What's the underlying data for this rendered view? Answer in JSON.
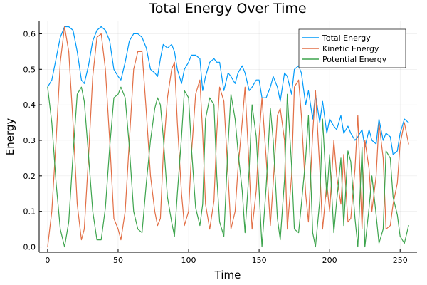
{
  "chart_data": {
    "type": "line",
    "title": "Total Energy Over Time",
    "xlabel": "Time",
    "ylabel": "Energy",
    "xlim": [
      -6,
      262
    ],
    "ylim": [
      -0.015,
      0.635
    ],
    "xticks": [
      0,
      50,
      100,
      150,
      200,
      250
    ],
    "yticks": [
      0.0,
      0.1,
      0.2,
      0.3,
      0.4,
      0.5,
      0.6
    ],
    "grid": true,
    "legend_position": "top-right",
    "series": [
      {
        "name": "Total Energy",
        "color": "#009af9",
        "x": [
          0,
          3,
          6,
          9,
          12,
          15,
          18,
          21,
          24,
          26,
          29,
          32,
          35,
          38,
          41,
          44,
          47,
          50,
          52,
          55,
          58,
          61,
          64,
          67,
          70,
          73,
          76,
          78,
          80,
          82,
          85,
          88,
          90,
          92,
          95,
          97,
          100,
          102,
          105,
          108,
          110,
          112,
          115,
          118,
          120,
          122,
          125,
          128,
          130,
          133,
          135,
          138,
          140,
          143,
          145,
          148,
          150,
          152,
          155,
          158,
          160,
          163,
          165,
          168,
          170,
          173,
          175,
          178,
          180,
          183,
          185,
          188,
          190,
          193,
          195,
          198,
          200,
          203,
          205,
          208,
          210,
          213,
          215,
          218,
          220,
          223,
          225,
          228,
          230,
          233,
          235,
          238,
          240,
          243,
          245,
          248,
          250,
          253,
          256
        ],
        "values": [
          0.45,
          0.47,
          0.53,
          0.59,
          0.62,
          0.62,
          0.61,
          0.55,
          0.47,
          0.46,
          0.51,
          0.58,
          0.61,
          0.62,
          0.61,
          0.58,
          0.5,
          0.48,
          0.47,
          0.52,
          0.58,
          0.6,
          0.6,
          0.59,
          0.56,
          0.5,
          0.49,
          0.48,
          0.53,
          0.57,
          0.56,
          0.57,
          0.55,
          0.5,
          0.46,
          0.5,
          0.52,
          0.54,
          0.54,
          0.53,
          0.44,
          0.48,
          0.52,
          0.53,
          0.52,
          0.52,
          0.44,
          0.49,
          0.48,
          0.46,
          0.49,
          0.51,
          0.49,
          0.44,
          0.45,
          0.47,
          0.47,
          0.42,
          0.42,
          0.45,
          0.48,
          0.45,
          0.41,
          0.49,
          0.48,
          0.43,
          0.5,
          0.51,
          0.49,
          0.4,
          0.44,
          0.36,
          0.43,
          0.35,
          0.41,
          0.32,
          0.36,
          0.34,
          0.33,
          0.37,
          0.32,
          0.34,
          0.32,
          0.3,
          0.31,
          0.33,
          0.28,
          0.33,
          0.3,
          0.29,
          0.36,
          0.3,
          0.32,
          0.31,
          0.26,
          0.27,
          0.32,
          0.36,
          0.35
        ]
      },
      {
        "name": "Kinetic Energy",
        "color": "#e26f46",
        "x": [
          0,
          3,
          6,
          9,
          12,
          15,
          18,
          21,
          24,
          26,
          29,
          32,
          35,
          38,
          41,
          44,
          47,
          50,
          52,
          55,
          58,
          61,
          64,
          67,
          70,
          73,
          76,
          78,
          80,
          82,
          85,
          88,
          90,
          92,
          95,
          97,
          100,
          102,
          105,
          108,
          110,
          112,
          115,
          118,
          120,
          122,
          125,
          128,
          130,
          133,
          135,
          138,
          140,
          143,
          145,
          148,
          150,
          152,
          155,
          158,
          160,
          163,
          165,
          168,
          170,
          173,
          175,
          178,
          180,
          183,
          185,
          188,
          190,
          193,
          195,
          198,
          200,
          203,
          205,
          208,
          210,
          213,
          215,
          218,
          220,
          223,
          225,
          228,
          230,
          233,
          235,
          238,
          240,
          243,
          245,
          248,
          250,
          253,
          256
        ],
        "values": [
          0.0,
          0.1,
          0.3,
          0.52,
          0.62,
          0.55,
          0.35,
          0.12,
          0.02,
          0.05,
          0.25,
          0.48,
          0.59,
          0.6,
          0.5,
          0.3,
          0.08,
          0.05,
          0.02,
          0.1,
          0.3,
          0.5,
          0.55,
          0.55,
          0.38,
          0.2,
          0.1,
          0.06,
          0.08,
          0.26,
          0.42,
          0.5,
          0.52,
          0.35,
          0.15,
          0.06,
          0.1,
          0.26,
          0.43,
          0.47,
          0.32,
          0.12,
          0.05,
          0.13,
          0.32,
          0.45,
          0.41,
          0.2,
          0.05,
          0.1,
          0.22,
          0.35,
          0.45,
          0.22,
          0.05,
          0.16,
          0.31,
          0.42,
          0.25,
          0.06,
          0.18,
          0.37,
          0.39,
          0.3,
          0.05,
          0.2,
          0.45,
          0.47,
          0.37,
          0.15,
          0.07,
          0.32,
          0.44,
          0.22,
          0.05,
          0.18,
          0.1,
          0.3,
          0.2,
          0.12,
          0.26,
          0.07,
          0.08,
          0.22,
          0.37,
          0.05,
          0.3,
          0.22,
          0.1,
          0.2,
          0.35,
          0.25,
          0.05,
          0.06,
          0.12,
          0.18,
          0.29,
          0.35,
          0.29
        ]
      },
      {
        "name": "Potential Energy",
        "color": "#3da44d",
        "x": [
          0,
          3,
          6,
          9,
          12,
          15,
          18,
          21,
          24,
          26,
          29,
          32,
          35,
          38,
          41,
          44,
          47,
          50,
          52,
          55,
          58,
          61,
          64,
          67,
          70,
          73,
          76,
          78,
          80,
          82,
          85,
          88,
          90,
          92,
          95,
          97,
          100,
          102,
          105,
          108,
          110,
          112,
          115,
          118,
          120,
          122,
          125,
          128,
          130,
          133,
          135,
          138,
          140,
          143,
          145,
          148,
          150,
          152,
          155,
          158,
          160,
          163,
          165,
          168,
          170,
          173,
          175,
          178,
          180,
          183,
          185,
          188,
          190,
          193,
          195,
          198,
          200,
          203,
          205,
          208,
          210,
          213,
          215,
          218,
          220,
          223,
          225,
          228,
          230,
          233,
          235,
          238,
          240,
          243,
          245,
          248,
          250,
          253,
          256
        ],
        "values": [
          0.45,
          0.35,
          0.18,
          0.05,
          0.0,
          0.07,
          0.26,
          0.43,
          0.45,
          0.41,
          0.26,
          0.1,
          0.02,
          0.02,
          0.11,
          0.28,
          0.42,
          0.43,
          0.45,
          0.42,
          0.28,
          0.1,
          0.05,
          0.04,
          0.18,
          0.3,
          0.39,
          0.42,
          0.4,
          0.31,
          0.14,
          0.07,
          0.03,
          0.15,
          0.31,
          0.44,
          0.42,
          0.28,
          0.11,
          0.06,
          0.12,
          0.36,
          0.42,
          0.4,
          0.2,
          0.07,
          0.03,
          0.29,
          0.43,
          0.36,
          0.27,
          0.16,
          0.04,
          0.22,
          0.4,
          0.31,
          0.16,
          0.0,
          0.17,
          0.39,
          0.3,
          0.08,
          0.02,
          0.19,
          0.43,
          0.23,
          0.05,
          0.04,
          0.12,
          0.25,
          0.37,
          0.04,
          0.0,
          0.13,
          0.36,
          0.14,
          0.26,
          0.04,
          0.13,
          0.25,
          0.06,
          0.27,
          0.24,
          0.08,
          0.0,
          0.28,
          0.0,
          0.11,
          0.2,
          0.09,
          0.01,
          0.05,
          0.27,
          0.25,
          0.14,
          0.09,
          0.03,
          0.01,
          0.06
        ]
      }
    ]
  }
}
